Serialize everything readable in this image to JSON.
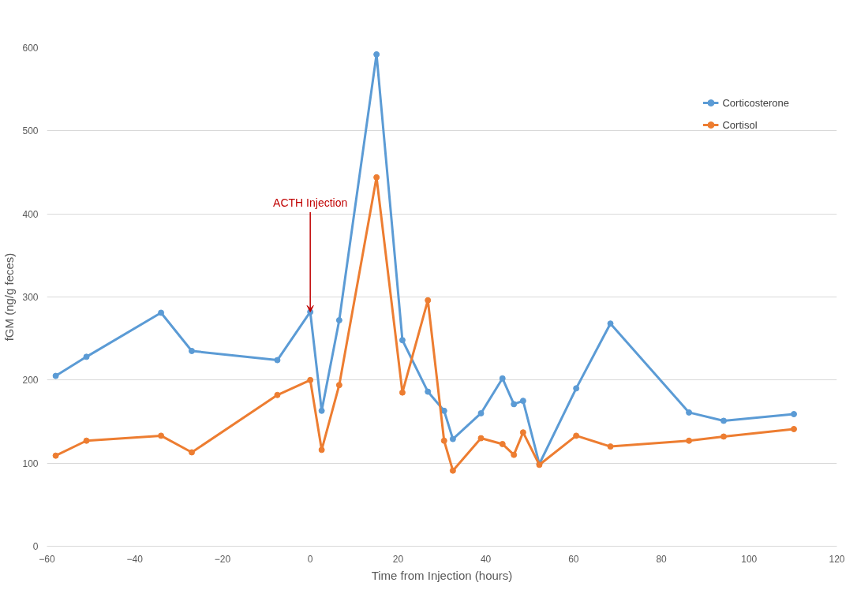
{
  "chart_data": {
    "type": "line",
    "xlabel": "Time from Injection (hours)",
    "ylabel": "fGM (ng/g feces)",
    "x": [
      -58,
      -51,
      -34,
      -27,
      -7.5,
      0,
      2.6,
      6.6,
      15.1,
      21,
      26.8,
      30.5,
      32.5,
      38.9,
      43.8,
      46.4,
      48.5,
      52.2,
      60.6,
      68.4,
      86.3,
      94.2,
      110.2
    ],
    "series": [
      {
        "name": "Corticosterone",
        "color": "#5b9bd5",
        "values": [
          205,
          228,
          281,
          235,
          224,
          282,
          163,
          272,
          592,
          248,
          186,
          163,
          129,
          160,
          202,
          171,
          175,
          99,
          190,
          268,
          161,
          151,
          159
        ]
      },
      {
        "name": "Cortisol",
        "color": "#ed7d31",
        "values": [
          109,
          127,
          133,
          113,
          182,
          200,
          116,
          194,
          444,
          185,
          296,
          127,
          91,
          130,
          123,
          110,
          137,
          98,
          133,
          120,
          127,
          132,
          141
        ]
      }
    ],
    "xlim": [
      -60,
      120
    ],
    "xticks": [
      -60,
      -40,
      -20,
      0,
      20,
      40,
      60,
      80,
      100,
      120
    ],
    "ylim": [
      0,
      600
    ],
    "yticks": [
      0,
      100,
      200,
      300,
      400,
      500,
      600
    ],
    "annotations": [
      {
        "text": "ACTH Injection",
        "x": 0,
        "y": 282
      }
    ],
    "grid": "y",
    "legend": "top right",
    "marker": "circle",
    "line_style": "solid"
  }
}
